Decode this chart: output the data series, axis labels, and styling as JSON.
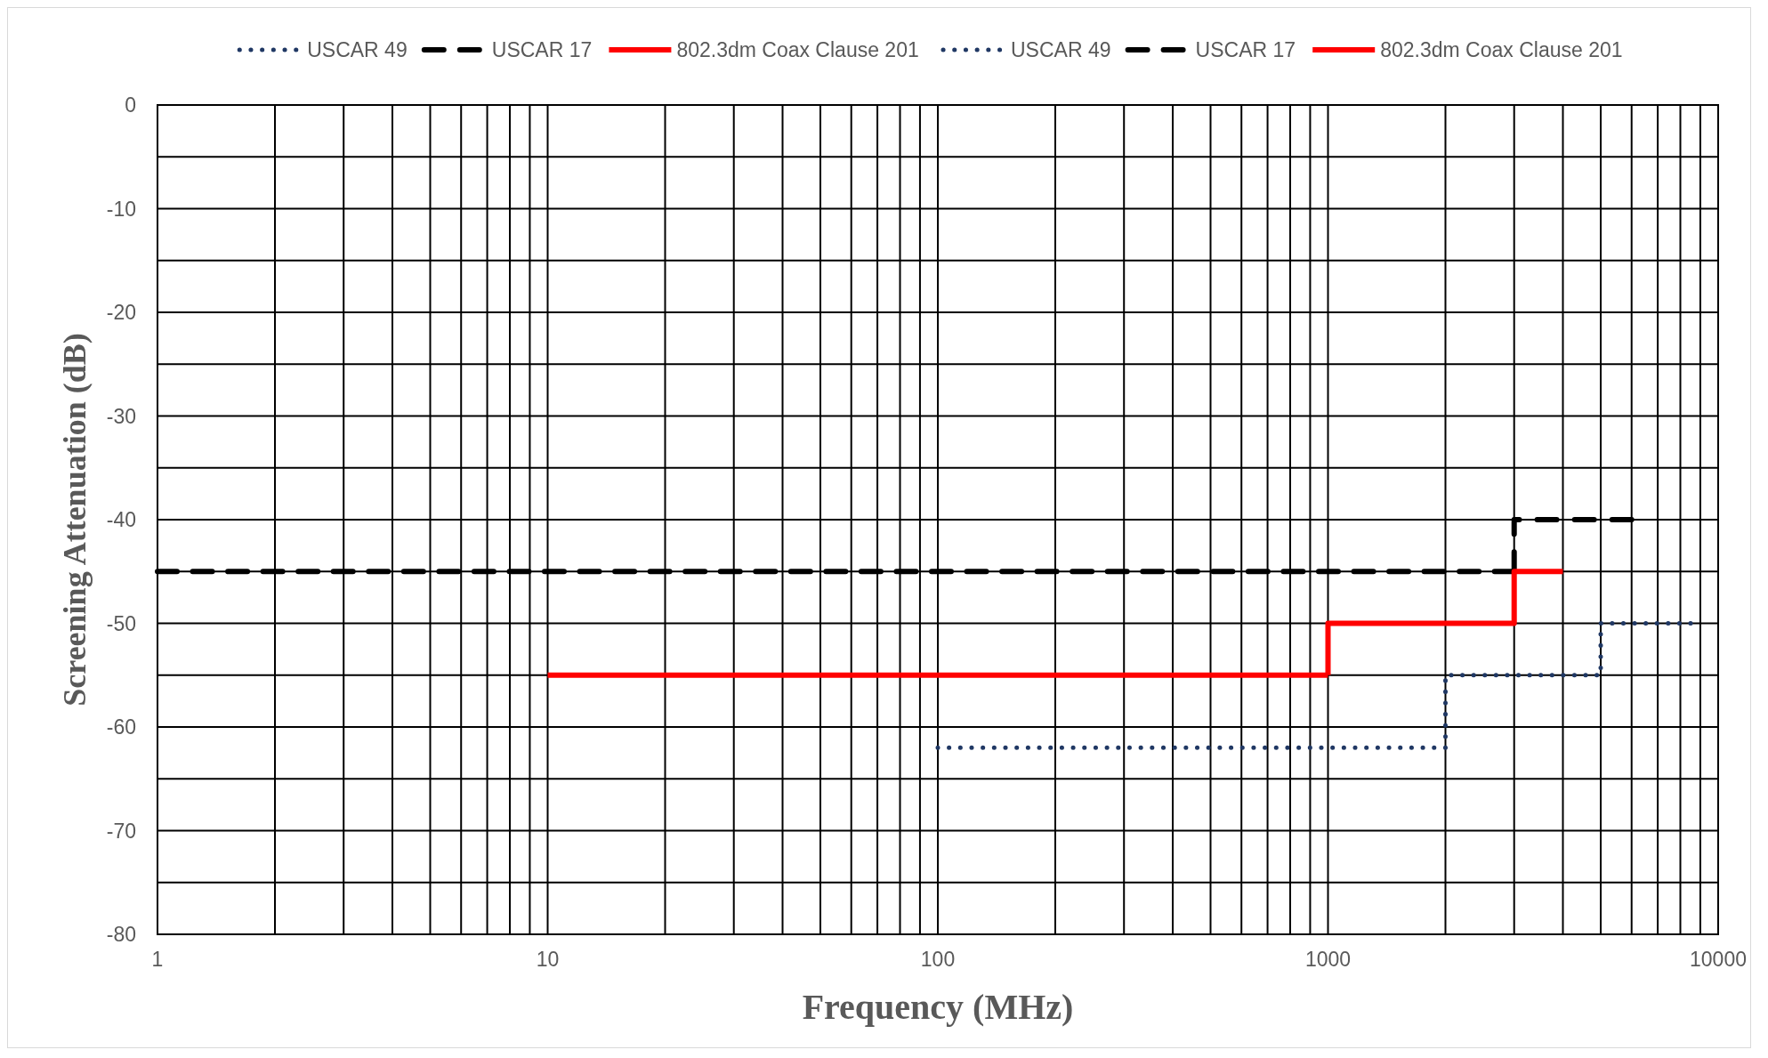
{
  "chart_data": {
    "type": "line",
    "xlabel": "Frequency (MHz)",
    "ylabel": "Screening Attenuation (dB)",
    "log": "x",
    "grid": true,
    "legend": "top",
    "xlim": [
      1,
      10000
    ],
    "xticks": [
      1,
      10,
      100,
      1000,
      10000
    ],
    "ylim": [
      -80,
      0
    ],
    "yticks": [
      -80,
      -70,
      -60,
      -50,
      -40,
      -30,
      -20,
      -10,
      0
    ],
    "series": [
      {
        "name": "USCAR 49",
        "color": "#203864",
        "line_style": "dotted",
        "x": [
          100,
          2000
        ],
        "values": [
          -62,
          -62
        ]
      },
      {
        "name": "USCAR 17",
        "color": "#000000",
        "line_style": "dashed",
        "x": [
          1,
          3000
        ],
        "values": [
          -45,
          -45
        ]
      },
      {
        "name": "802.3dm Coax Clause 201",
        "color": "#ff0000",
        "line_style": "solid",
        "x": [
          10,
          1000
        ],
        "values": [
          -55,
          -55
        ]
      },
      {
        "name": "USCAR 49",
        "color": "#203864",
        "line_style": "dotted",
        "x": [
          2000,
          2000,
          5000,
          5000,
          8500
        ],
        "values": [
          -62,
          -55,
          -55,
          -50,
          -50
        ]
      },
      {
        "name": "USCAR 17",
        "color": "#000000",
        "line_style": "dashed",
        "x": [
          3000,
          3000,
          6000
        ],
        "values": [
          -45,
          -40,
          -40
        ]
      },
      {
        "name": "802.3dm Coax Clause 201",
        "color": "#ff0000",
        "line_style": "solid",
        "x": [
          1000,
          1000,
          3000,
          3000,
          4000
        ],
        "values": [
          -55,
          -50,
          -50,
          -45,
          -45
        ]
      }
    ]
  }
}
